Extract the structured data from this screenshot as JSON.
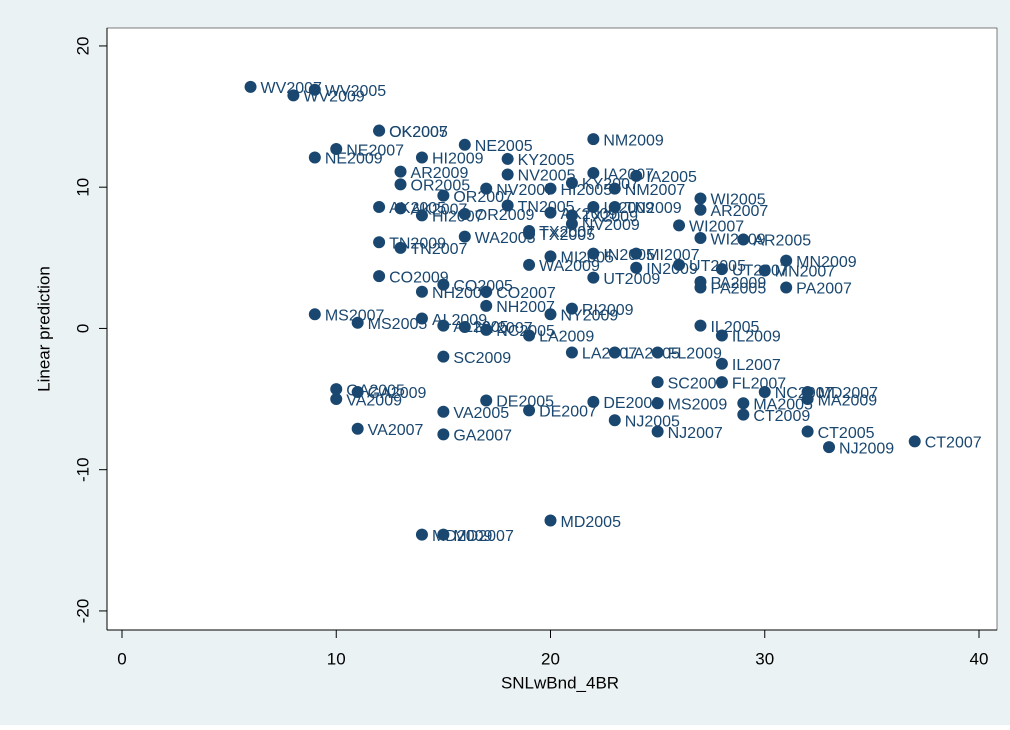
{
  "chart_data": {
    "type": "scatter",
    "x_label": "SNLwBnd_4BR",
    "y_label": "Linear prediction",
    "xlim": [
      -0.7,
      40.84
    ],
    "ylim": [
      -21.35,
      21.27
    ],
    "xticks": [
      0,
      10,
      20,
      30,
      40
    ],
    "yticks": [
      -20,
      -10,
      0,
      10,
      20
    ],
    "grid": false,
    "color": "#1a476f",
    "x": [
      6,
      9,
      8,
      12,
      12,
      10,
      9,
      16,
      22,
      14,
      18,
      13,
      22,
      18,
      24,
      13,
      17,
      20,
      21,
      23,
      15,
      27,
      27,
      12,
      13,
      14,
      16,
      18,
      20,
      21,
      22,
      23,
      26,
      21,
      19,
      19,
      16,
      29,
      27,
      12,
      13,
      20,
      22,
      24,
      31,
      19,
      24,
      26,
      28,
      30,
      22,
      12,
      15,
      27,
      27,
      31,
      14,
      17,
      17,
      21,
      20,
      9,
      14,
      11,
      15,
      16,
      17,
      27,
      19,
      28,
      28,
      15,
      21,
      23,
      25,
      25,
      28,
      10,
      11,
      30,
      32,
      10,
      32,
      17,
      22,
      25,
      29,
      19,
      23,
      29,
      15,
      11,
      15,
      25,
      32,
      37,
      33,
      20,
      14,
      15
    ],
    "values": [
      17.1,
      16.9,
      16.5,
      14.0,
      14.0,
      12.7,
      12.1,
      13.0,
      13.4,
      12.1,
      12.0,
      11.1,
      11.0,
      10.9,
      10.8,
      10.2,
      9.9,
      9.9,
      10.3,
      9.9,
      9.4,
      9.2,
      8.4,
      8.6,
      8.5,
      8.0,
      8.1,
      8.7,
      8.2,
      8.0,
      8.6,
      8.6,
      7.3,
      7.4,
      6.9,
      6.7,
      6.5,
      6.3,
      6.4,
      6.1,
      5.7,
      5.1,
      5.3,
      5.3,
      4.8,
      4.5,
      4.3,
      4.5,
      4.2,
      4.1,
      3.6,
      3.7,
      3.1,
      3.3,
      2.9,
      2.9,
      2.6,
      2.6,
      1.6,
      1.4,
      1.0,
      1.0,
      0.7,
      0.4,
      0.2,
      0.1,
      -0.1,
      0.2,
      -0.5,
      -0.5,
      -2.5,
      -2.0,
      -1.7,
      -1.7,
      -1.7,
      -3.8,
      -3.8,
      -4.3,
      -4.5,
      -4.5,
      -4.5,
      -5.0,
      -5.0,
      -5.1,
      -5.2,
      -5.3,
      -5.3,
      -5.8,
      -6.5,
      -6.1,
      -5.9,
      -7.1,
      -7.5,
      -7.3,
      -7.3,
      -8.0,
      -8.4,
      -13.6,
      -14.6,
      -14.6
    ],
    "point_labels": [
      "WV2007",
      "WV2005",
      "WV2009",
      "OK2005",
      "OK2007",
      "NE2007",
      "NE2009",
      "NE2005",
      "NM2009",
      "HI2009",
      "KY2005",
      "AR2009",
      "IA2007",
      "NV2005",
      "IA2005",
      "OR2005",
      "NV2007",
      "HI2005",
      "KY2007",
      "NM2007",
      "OR2007",
      "WI2005",
      "AR2007",
      "AK2005",
      "AK2007",
      "HI2007",
      "OR2009",
      "TN2005",
      "AK2009",
      "TX2009",
      "IA2009",
      "TN2009",
      "WI2007",
      "NV2009",
      "TX2007",
      "TX2005",
      "WA2005",
      "AR2005",
      "WI2009",
      "TN2009",
      "TN2007",
      "MI2005",
      "IN2005",
      "MI2007",
      "MN2009",
      "WA2009",
      "IN2009",
      "UT2005",
      "UT2007",
      "MN2007",
      "UT2009",
      "CO2009",
      "CO2005",
      "PA2009",
      "PA2005",
      "PA2007",
      "NH2005",
      "CO2007",
      "NH2007",
      "RI2009",
      "NY2009",
      "MS2007",
      "AL2009",
      "MS2005",
      "AL2005",
      "NY2007",
      "NC2005",
      "IL2005",
      "LA2009",
      "IL2009",
      "IL2007",
      "SC2009",
      "LA2007",
      "LA2005",
      "FL2009",
      "SC2005",
      "FL2007",
      "GA2005",
      "GA2009",
      "NC2007",
      "MD2007",
      "VA2009",
      "MA2009",
      "DE2005",
      "DE2009",
      "MS2009",
      "MA2005",
      "DE2007",
      "NJ2005",
      "CT2009",
      "VA2005",
      "VA2007",
      "GA2007",
      "NJ2007",
      "CT2005",
      "CT2007",
      "NJ2009",
      "MD2005",
      "MD2009",
      "MD2007"
    ]
  }
}
